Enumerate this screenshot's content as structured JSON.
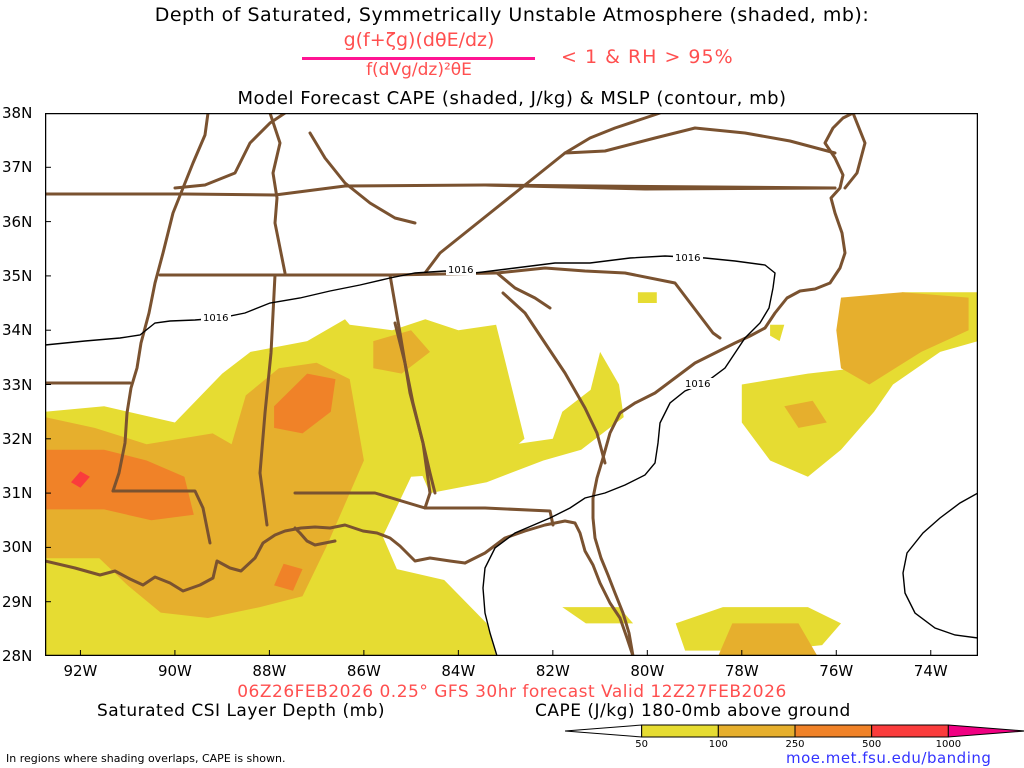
{
  "header": {
    "title_line1": "Depth of Saturated, Symmetrically Unstable Atmosphere (shaded, mb):",
    "formula_numerator": "g(f+ζg)(dθE/dz)",
    "formula_denominator": "f(dVg/dz)²θE",
    "formula_condition": "< 1 & RH > 95%",
    "title_line3": "Model Forecast CAPE (shaded, J/kg) & MSLP (contour, mb)"
  },
  "footer": {
    "valid_line": "06Z26FEB2026 0.25° GFS 30hr forecast Valid 12Z27FEB2026",
    "csi_label": "Saturated CSI Layer Depth (mb)",
    "cape_label": "CAPE (J/kg) 180-0mb above ground",
    "note": "In regions where shading overlaps, CAPE is shown.",
    "credit": "moe.met.fsu.edu/banding"
  },
  "colors": {
    "cape_50": "#e6dc32",
    "cape_100": "#e6af2d",
    "cape_250": "#f08228",
    "cape_500": "#fa3c3c",
    "cape_1000": "#f00082",
    "borders": "#7a5230",
    "contour": "#000000"
  },
  "chart_data": {
    "type": "heatmap",
    "projection": "lat-lon",
    "lon_range": [
      -92.75,
      -73.0
    ],
    "lat_range": [
      28.0,
      38.0
    ],
    "y_ticks": [
      {
        "v": 38,
        "label": "38N"
      },
      {
        "v": 37,
        "label": "37N"
      },
      {
        "v": 36,
        "label": "36N"
      },
      {
        "v": 35,
        "label": "35N"
      },
      {
        "v": 34,
        "label": "34N"
      },
      {
        "v": 33,
        "label": "33N"
      },
      {
        "v": 32,
        "label": "32N"
      },
      {
        "v": 31,
        "label": "31N"
      },
      {
        "v": 30,
        "label": "30N"
      },
      {
        "v": 29,
        "label": "29N"
      },
      {
        "v": 28,
        "label": "28N"
      }
    ],
    "x_ticks": [
      {
        "v": -92,
        "label": "92W"
      },
      {
        "v": -90,
        "label": "90W"
      },
      {
        "v": -88,
        "label": "88W"
      },
      {
        "v": -86,
        "label": "86W"
      },
      {
        "v": -84,
        "label": "84W"
      },
      {
        "v": -82,
        "label": "82W"
      },
      {
        "v": -80,
        "label": "80W"
      },
      {
        "v": -78,
        "label": "78W"
      },
      {
        "v": -76,
        "label": "76W"
      },
      {
        "v": -74,
        "label": "74W"
      }
    ],
    "colorbar": {
      "ticks": [
        "50",
        "100",
        "250",
        "500",
        "1000"
      ],
      "colors": [
        "#ffffff",
        "#e6dc32",
        "#e6af2d",
        "#f08228",
        "#fa3c3c",
        "#f00082"
      ]
    },
    "mslp_contours": [
      {
        "value": 1016,
        "label": "1016"
      }
    ],
    "cape_regions": [
      {
        "level": 50,
        "polygon": [
          [
            -92.75,
            32.5
          ],
          [
            -91.5,
            32.6
          ],
          [
            -90,
            32.3
          ],
          [
            -89,
            33.2
          ],
          [
            -88.4,
            33.6
          ],
          [
            -87.2,
            33.8
          ],
          [
            -86.4,
            34.2
          ],
          [
            -86.3,
            34.1
          ],
          [
            -85.4,
            34.0
          ],
          [
            -84.7,
            34.2
          ],
          [
            -84.0,
            34.0
          ],
          [
            -83.2,
            34.1
          ],
          [
            -83.0,
            33.4
          ],
          [
            -82.6,
            32.0
          ],
          [
            -83.4,
            31.4
          ],
          [
            -85.0,
            31.3
          ],
          [
            -85.6,
            30.2
          ],
          [
            -85.3,
            29.6
          ],
          [
            -84.3,
            29.4
          ],
          [
            -83.4,
            28.6
          ],
          [
            -83.2,
            28.0
          ],
          [
            -92.75,
            28.0
          ]
        ]
      },
      {
        "level": 50,
        "polygon": [
          [
            -84.9,
            31.6
          ],
          [
            -83.6,
            31.8
          ],
          [
            -82.0,
            32.0
          ],
          [
            -81.8,
            32.5
          ],
          [
            -81.2,
            32.9
          ],
          [
            -81.0,
            33.6
          ],
          [
            -80.6,
            33.0
          ],
          [
            -80.5,
            32.4
          ],
          [
            -81.4,
            31.8
          ],
          [
            -82.2,
            31.6
          ],
          [
            -83.4,
            31.2
          ],
          [
            -84.6,
            31.0
          ]
        ]
      },
      {
        "level": 50,
        "polygon": [
          [
            -78.0,
            33.0
          ],
          [
            -76.6,
            33.2
          ],
          [
            -75.6,
            33.3
          ],
          [
            -75.2,
            33.8
          ],
          [
            -75.4,
            34.5
          ],
          [
            -74.6,
            34.7
          ],
          [
            -73.0,
            34.7
          ],
          [
            -73.0,
            33.8
          ],
          [
            -73.8,
            33.6
          ],
          [
            -74.8,
            33.0
          ],
          [
            -75.2,
            32.5
          ],
          [
            -75.9,
            31.8
          ],
          [
            -76.6,
            31.3
          ],
          [
            -77.4,
            31.6
          ],
          [
            -78.0,
            32.3
          ]
        ]
      },
      {
        "level": 50,
        "polygon": [
          [
            -79.2,
            28.1
          ],
          [
            -77.4,
            28.1
          ],
          [
            -76.3,
            28.2
          ],
          [
            -75.9,
            28.6
          ],
          [
            -76.6,
            28.9
          ],
          [
            -78.4,
            28.9
          ],
          [
            -79.4,
            28.6
          ]
        ]
      },
      {
        "level": 50,
        "polygon": [
          [
            -81.8,
            28.9
          ],
          [
            -80.6,
            28.9
          ],
          [
            -80.3,
            28.6
          ],
          [
            -81.3,
            28.6
          ]
        ]
      },
      {
        "level": 50,
        "polygon": [
          [
            -80.2,
            34.7
          ],
          [
            -79.8,
            34.7
          ],
          [
            -79.8,
            34.5
          ],
          [
            -80.2,
            34.5
          ]
        ]
      },
      {
        "level": 50,
        "polygon": [
          [
            -77.4,
            34.1
          ],
          [
            -77.1,
            34.1
          ],
          [
            -77.2,
            33.8
          ],
          [
            -77.4,
            33.9
          ]
        ]
      },
      {
        "level": 100,
        "polygon": [
          [
            -92.75,
            32.4
          ],
          [
            -91.7,
            32.2
          ],
          [
            -90.6,
            31.9
          ],
          [
            -89.2,
            32.1
          ],
          [
            -88.8,
            31.9
          ],
          [
            -88.5,
            32.8
          ],
          [
            -87.8,
            33.3
          ],
          [
            -87.0,
            33.4
          ],
          [
            -86.3,
            33.1
          ],
          [
            -86.0,
            31.6
          ],
          [
            -86.4,
            30.8
          ],
          [
            -86.8,
            30.0
          ],
          [
            -87.3,
            29.1
          ],
          [
            -88.2,
            28.9
          ],
          [
            -89.3,
            28.7
          ],
          [
            -90.3,
            28.8
          ],
          [
            -91.0,
            29.3
          ],
          [
            -91.6,
            29.8
          ],
          [
            -92.75,
            29.8
          ]
        ]
      },
      {
        "level": 100,
        "polygon": [
          [
            -85.8,
            33.8
          ],
          [
            -85.0,
            34.0
          ],
          [
            -84.6,
            33.6
          ],
          [
            -85.2,
            33.2
          ],
          [
            -85.8,
            33.3
          ]
        ]
      },
      {
        "level": 100,
        "polygon": [
          [
            -75.9,
            34.6
          ],
          [
            -74.6,
            34.7
          ],
          [
            -73.2,
            34.6
          ],
          [
            -73.2,
            34.0
          ],
          [
            -74.2,
            33.6
          ],
          [
            -75.3,
            33.0
          ],
          [
            -75.9,
            33.3
          ],
          [
            -76.0,
            34.0
          ]
        ]
      },
      {
        "level": 100,
        "polygon": [
          [
            -78.2,
            28.6
          ],
          [
            -76.8,
            28.6
          ],
          [
            -76.4,
            28.0
          ],
          [
            -78.5,
            28.0
          ]
        ]
      },
      {
        "level": 100,
        "polygon": [
          [
            -77.1,
            32.6
          ],
          [
            -76.5,
            32.7
          ],
          [
            -76.2,
            32.3
          ],
          [
            -76.8,
            32.2
          ]
        ]
      },
      {
        "level": 250,
        "polygon": [
          [
            -92.75,
            31.8
          ],
          [
            -91.5,
            31.8
          ],
          [
            -90.6,
            31.6
          ],
          [
            -89.8,
            31.3
          ],
          [
            -89.6,
            30.6
          ],
          [
            -90.5,
            30.5
          ],
          [
            -91.5,
            30.7
          ],
          [
            -92.75,
            30.7
          ]
        ]
      },
      {
        "level": 250,
        "polygon": [
          [
            -87.9,
            32.6
          ],
          [
            -87.2,
            33.2
          ],
          [
            -86.6,
            33.1
          ],
          [
            -86.7,
            32.5
          ],
          [
            -87.3,
            32.1
          ],
          [
            -87.9,
            32.2
          ]
        ]
      },
      {
        "level": 250,
        "polygon": [
          [
            -87.7,
            29.7
          ],
          [
            -87.3,
            29.6
          ],
          [
            -87.5,
            29.2
          ],
          [
            -87.9,
            29.3
          ]
        ]
      },
      {
        "level": 500,
        "polygon": [
          [
            -92.0,
            31.4
          ],
          [
            -91.8,
            31.3
          ],
          [
            -92.0,
            31.1
          ],
          [
            -92.2,
            31.2
          ]
        ]
      }
    ]
  }
}
